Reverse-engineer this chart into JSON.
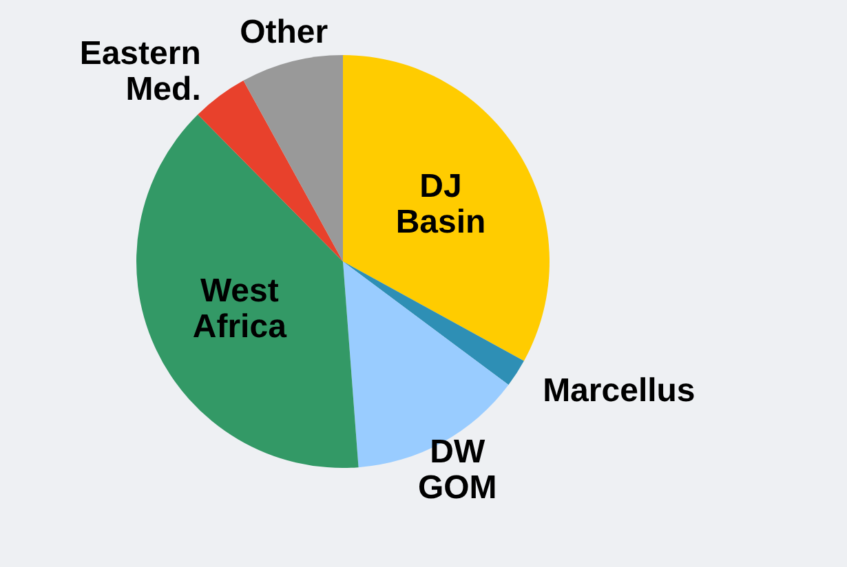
{
  "chart_data": {
    "type": "pie",
    "categories": [
      "DJ Basin",
      "Marcellus",
      "DW GOM",
      "West Africa",
      "Eastern Med.",
      "Other"
    ],
    "values": [
      33,
      2.2,
      13.6,
      38.8,
      4.4,
      8
    ],
    "colors": [
      "#ffcc00",
      "#2e8fb5",
      "#99ccff",
      "#339966",
      "#e8412c",
      "#999999"
    ]
  }
}
